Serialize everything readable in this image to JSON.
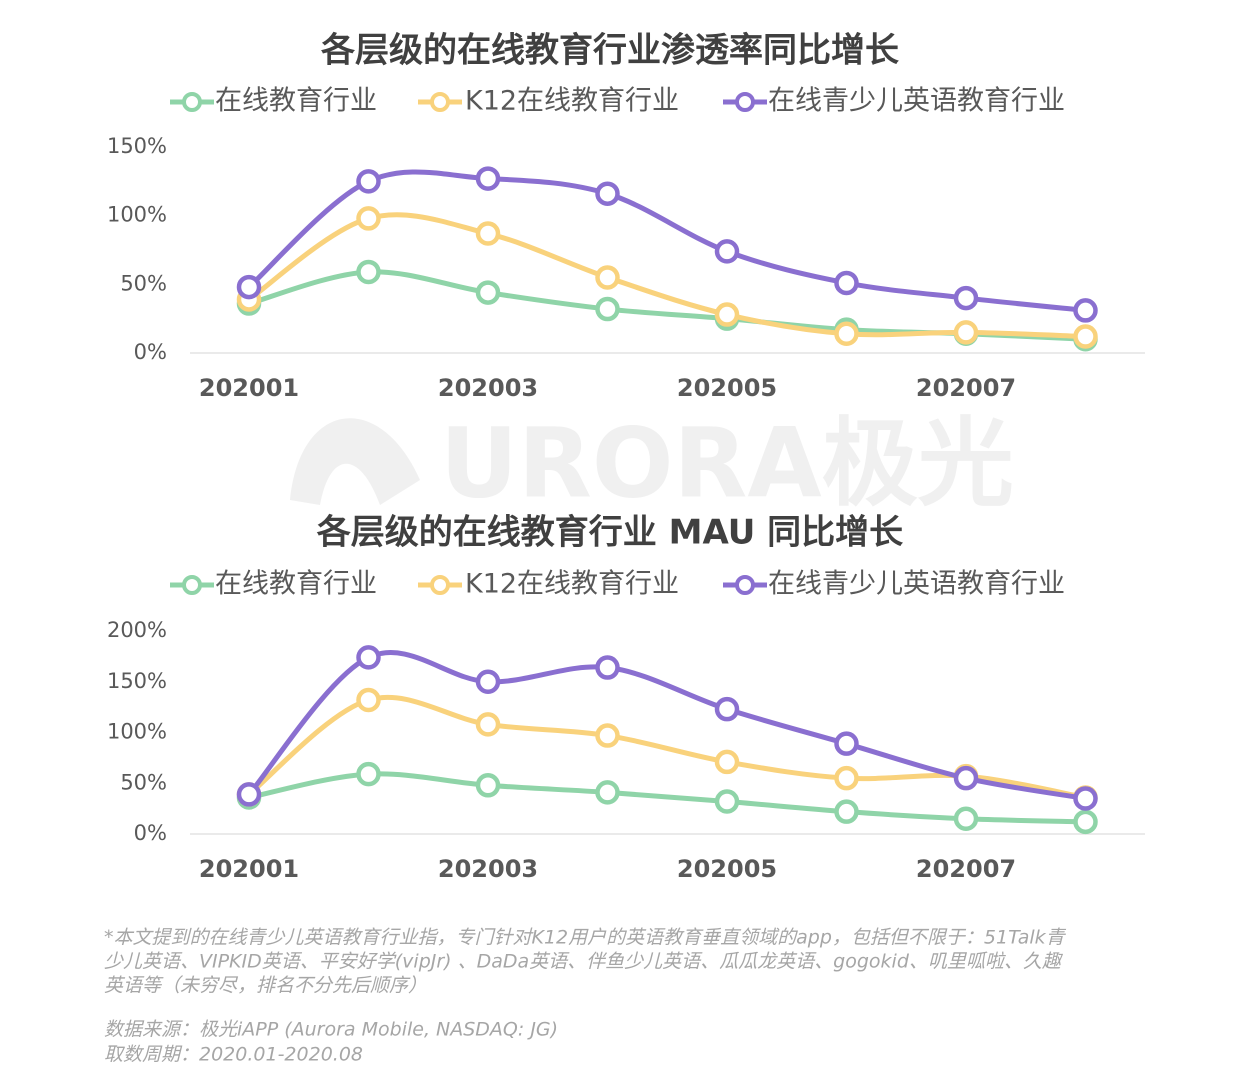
{
  "chart_data": [
    {
      "type": "line",
      "title": "各层级的在线教育行业渗透率同比增长",
      "categories": [
        "202001",
        null,
        "202003",
        null,
        "202005",
        null,
        "202007",
        null
      ],
      "series": [
        {
          "name": "在线教育行业",
          "color": "#8fd4a8",
          "values": [
            36,
            59,
            44,
            32,
            25,
            17,
            14,
            10
          ]
        },
        {
          "name": "K12在线教育行业",
          "color": "#f9d27c",
          "values": [
            39,
            98,
            87,
            55,
            28,
            14,
            15,
            12
          ]
        },
        {
          "name": "在线青少儿英语教育行业",
          "color": "#8a6fd0",
          "values": [
            48,
            125,
            127,
            116,
            74,
            51,
            40,
            31
          ]
        }
      ],
      "ylim": [
        0,
        150
      ],
      "yticks": [
        {
          "value": 0,
          "label": "0%"
        },
        {
          "value": 50,
          "label": "50%"
        },
        {
          "value": 100,
          "label": "100%"
        },
        {
          "value": 150,
          "label": "150%"
        }
      ]
    },
    {
      "type": "line",
      "title": "各层级的在线教育行业 MAU 同比增长",
      "categories": [
        "202001",
        null,
        "202003",
        null,
        "202005",
        null,
        "202007",
        null
      ],
      "series": [
        {
          "name": "在线教育行业",
          "color": "#8fd4a8",
          "values": [
            36,
            59,
            48,
            41,
            32,
            22,
            15,
            12
          ]
        },
        {
          "name": "K12在线教育行业",
          "color": "#f9d27c",
          "values": [
            39,
            132,
            108,
            97,
            71,
            55,
            57,
            36
          ]
        },
        {
          "name": "在线青少儿英语教育行业",
          "color": "#8a6fd0",
          "values": [
            39,
            174,
            150,
            164,
            123,
            89,
            55,
            35
          ]
        }
      ],
      "ylim": [
        0,
        200
      ],
      "yticks": [
        {
          "value": 0,
          "label": "0%"
        },
        {
          "value": 50,
          "label": "50%"
        },
        {
          "value": 100,
          "label": "100%"
        },
        {
          "value": 150,
          "label": "150%"
        },
        {
          "value": 200,
          "label": "200%"
        }
      ]
    }
  ],
  "watermark": "URORA极光",
  "notes": [
    "*本文提到的在线青少儿英语教育行业指，专门针对K12用户的英语教育垂直领域的app，包括但不限于：51Talk青",
    "少儿英语、VIPKID英语、平安好学(vipJr) 、DaDa英语、伴鱼少儿英语、瓜瓜龙英语、gogokid、叽里呱啦、久趣",
    "英语等（未穷尽，排名不分先后顺序）"
  ],
  "source": [
    "数据来源：极光iAPP (Aurora Mobile, NASDAQ: JG)",
    "取数周期：2020.01-2020.08"
  ]
}
